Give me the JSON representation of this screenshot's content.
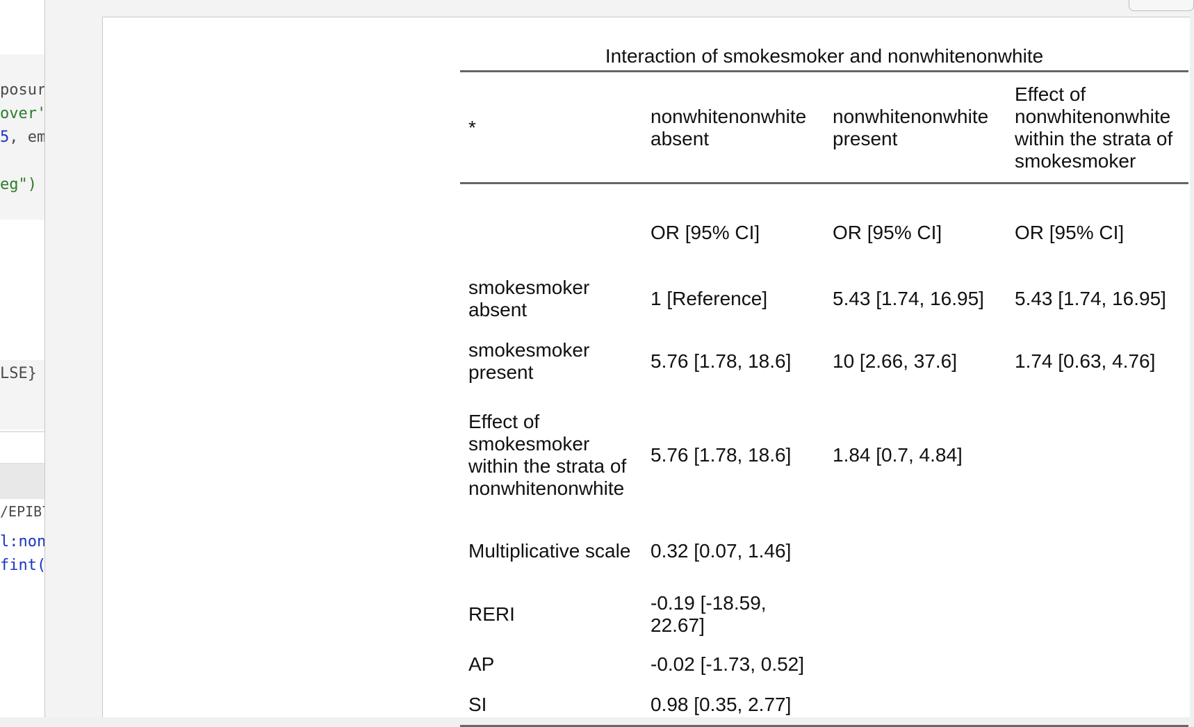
{
  "editor_fragments": {
    "lines": [
      {
        "text": "posur",
        "color": "default"
      },
      {
        "text": "over'",
        "color": "green"
      },
      {
        "text": "5, em",
        "color": "mixed"
      },
      {
        "text": "eg\")",
        "color": "green"
      },
      {
        "text": "LSE}",
        "color": "default"
      },
      {
        "text": "/EPIB7",
        "color": "default"
      },
      {
        "text": "l:non",
        "color": "blue"
      },
      {
        "text": "fint(",
        "color": "blue"
      }
    ]
  },
  "table": {
    "caption": "Interaction of smokesmoker and nonwhitenonwhite",
    "headers": [
      "*",
      "nonwhitenonwhite absent",
      "nonwhitenonwhite present",
      "Effect of nonwhitenonwhite within the strata of smokesmoker"
    ],
    "subheader": [
      "",
      "OR [95% CI]",
      "OR [95% CI]",
      "OR [95% CI]"
    ],
    "rows": [
      {
        "label": "smokesmoker absent",
        "cells": [
          "1 [Reference]",
          "5.43 [1.74, 16.95]",
          "5.43 [1.74, 16.95]"
        ]
      },
      {
        "label": "smokesmoker present",
        "cells": [
          "5.76 [1.78, 18.6]",
          "10 [2.66, 37.6]",
          "1.74 [0.63, 4.76]"
        ]
      },
      {
        "label": "Effect of smokesmoker within the strata of nonwhitenonwhite",
        "cells": [
          "5.76 [1.78, 18.6]",
          "1.84 [0.7, 4.84]",
          ""
        ]
      },
      {
        "label": "Multiplicative scale",
        "cells": [
          "0.32 [0.07, 1.46]",
          "",
          ""
        ]
      },
      {
        "label": "RERI",
        "cells": [
          "-0.19 [-18.59, 22.67]",
          "",
          ""
        ]
      },
      {
        "label": "AP",
        "cells": [
          "-0.02 [-1.73, 0.52]",
          "",
          ""
        ]
      },
      {
        "label": "SI",
        "cells": [
          "0.98 [0.35, 2.77]",
          "",
          ""
        ]
      }
    ]
  }
}
